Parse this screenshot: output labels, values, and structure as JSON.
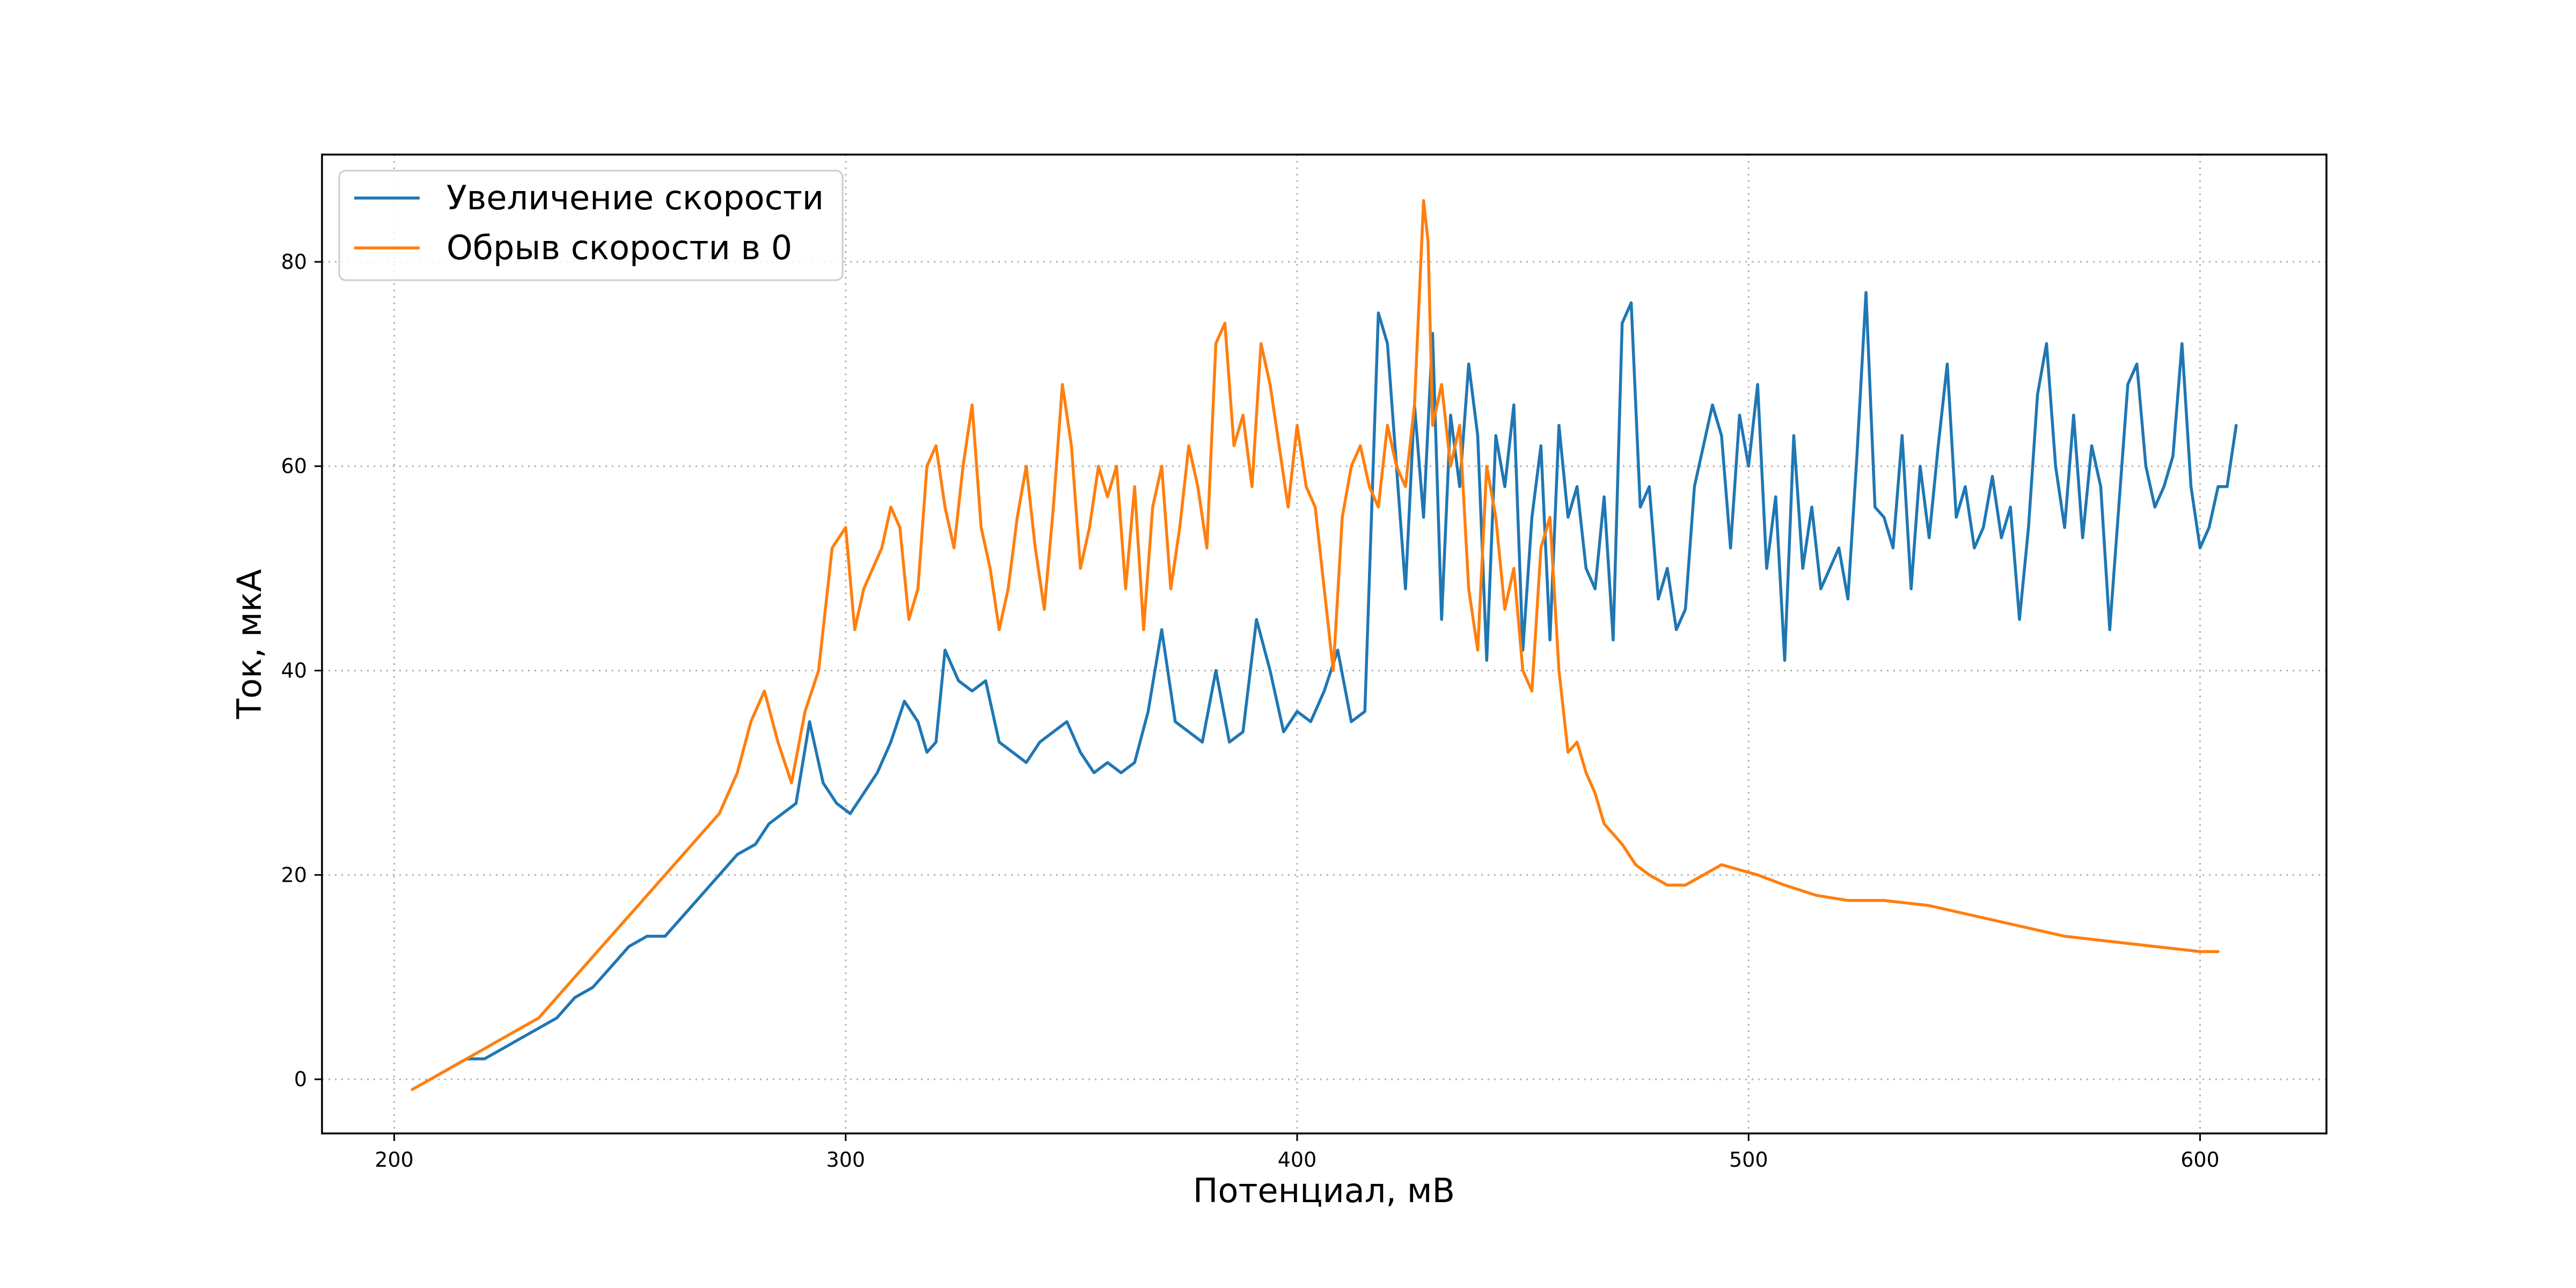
{
  "chart_data": {
    "type": "line",
    "title": "",
    "xlabel": "Потенциал, мВ",
    "ylabel": "Ток, мкА",
    "xlim": [
      184,
      628
    ],
    "ylim": [
      -5.3,
      90.5
    ],
    "xticks": [
      200,
      300,
      400,
      500,
      600
    ],
    "yticks": [
      0,
      20,
      40,
      60,
      80
    ],
    "grid": true,
    "legend_position": "top-left",
    "series": [
      {
        "name": "Увеличение скорости",
        "color": "#1f77b4",
        "x": [
          208,
          212,
          216,
          220,
          224,
          228,
          232,
          236,
          240,
          244,
          248,
          252,
          256,
          260,
          264,
          268,
          272,
          276,
          280,
          283,
          286,
          289,
          292,
          295,
          298,
          301,
          304,
          307,
          310,
          313,
          316,
          318,
          320,
          322,
          325,
          328,
          331,
          334,
          337,
          340,
          343,
          346,
          349,
          352,
          355,
          358,
          361,
          364,
          367,
          370,
          373,
          376,
          379,
          382,
          385,
          388,
          391,
          394,
          397,
          400,
          403,
          406,
          409,
          412,
          415,
          418,
          420,
          422,
          424,
          426,
          428,
          430,
          432,
          434,
          436,
          438,
          440,
          442,
          444,
          446,
          448,
          450,
          452,
          454,
          456,
          458,
          460,
          462,
          464,
          466,
          468,
          470,
          472,
          474,
          476,
          478,
          480,
          482,
          484,
          486,
          488,
          490,
          492,
          494,
          496,
          498,
          500,
          502,
          504,
          506,
          508,
          510,
          512,
          514,
          516,
          518,
          520,
          522,
          524,
          526,
          528,
          530,
          532,
          534,
          536,
          538,
          540,
          542,
          544,
          546,
          548,
          550,
          552,
          554,
          556,
          558,
          560,
          562,
          564,
          566,
          568,
          570,
          572,
          574,
          576,
          578,
          580,
          582,
          584,
          586,
          588,
          590,
          592,
          594,
          596,
          598,
          600,
          602,
          604,
          606,
          608
        ],
        "y": [
          0,
          1,
          2,
          2,
          3,
          4,
          5,
          6,
          8,
          9,
          11,
          13,
          14,
          14,
          16,
          18,
          20,
          22,
          23,
          25,
          26,
          27,
          35,
          29,
          27,
          26,
          28,
          30,
          33,
          37,
          35,
          32,
          33,
          42,
          39,
          38,
          39,
          33,
          32,
          31,
          33,
          34,
          35,
          32,
          30,
          31,
          30,
          31,
          36,
          44,
          35,
          34,
          33,
          40,
          33,
          34,
          45,
          40,
          34,
          36,
          35,
          38,
          42,
          35,
          36,
          75,
          72,
          60,
          48,
          66,
          55,
          73,
          45,
          65,
          58,
          70,
          63,
          41,
          63,
          58,
          66,
          42,
          55,
          62,
          43,
          64,
          55,
          58,
          50,
          48,
          57,
          43,
          74,
          76,
          56,
          58,
          47,
          50,
          44,
          46,
          58,
          62,
          66,
          63,
          52,
          65,
          60,
          68,
          50,
          57,
          41,
          63,
          50,
          56,
          48,
          50,
          52,
          47,
          61,
          77,
          56,
          55,
          52,
          63,
          48,
          60,
          53,
          62,
          70,
          55,
          58,
          52,
          54,
          59,
          53,
          56,
          45,
          54,
          67,
          72,
          60,
          54,
          65,
          53,
          62,
          58,
          44,
          56,
          68,
          70,
          60,
          56,
          58,
          61,
          72,
          58,
          52,
          54,
          58,
          58,
          64
        ]
      },
      {
        "name": "Обрыв скорости в 0",
        "color": "#ff7f0e",
        "x": [
          204,
          208,
          212,
          216,
          220,
          224,
          228,
          232,
          236,
          240,
          244,
          248,
          252,
          256,
          260,
          264,
          268,
          272,
          276,
          279,
          282,
          285,
          288,
          291,
          294,
          297,
          300,
          302,
          304,
          306,
          308,
          310,
          312,
          314,
          316,
          318,
          320,
          322,
          324,
          326,
          328,
          330,
          332,
          334,
          336,
          338,
          340,
          342,
          344,
          346,
          348,
          350,
          352,
          354,
          356,
          358,
          360,
          362,
          364,
          366,
          368,
          370,
          372,
          374,
          376,
          378,
          380,
          382,
          384,
          386,
          388,
          390,
          392,
          394,
          396,
          398,
          400,
          402,
          404,
          406,
          408,
          410,
          412,
          414,
          416,
          418,
          420,
          422,
          424,
          426,
          428,
          429,
          430,
          432,
          434,
          436,
          438,
          440,
          442,
          444,
          446,
          448,
          450,
          452,
          454,
          456,
          458,
          460,
          462,
          464,
          466,
          468,
          470,
          472,
          475,
          478,
          482,
          486,
          490,
          494,
          498,
          502,
          508,
          515,
          522,
          530,
          540,
          550,
          560,
          570,
          580,
          590,
          600,
          604
        ],
        "y": [
          -1,
          0,
          1,
          2,
          3,
          4,
          5,
          6,
          8,
          10,
          12,
          14,
          16,
          18,
          20,
          22,
          24,
          26,
          30,
          35,
          38,
          33,
          29,
          36,
          40,
          52,
          54,
          44,
          48,
          50,
          52,
          56,
          54,
          45,
          48,
          60,
          62,
          56,
          52,
          60,
          66,
          54,
          50,
          44,
          48,
          55,
          60,
          52,
          46,
          56,
          68,
          62,
          50,
          54,
          60,
          57,
          60,
          48,
          58,
          44,
          56,
          60,
          48,
          54,
          62,
          58,
          52,
          72,
          74,
          62,
          65,
          58,
          72,
          68,
          62,
          56,
          64,
          58,
          56,
          48,
          40,
          55,
          60,
          62,
          58,
          56,
          64,
          60,
          58,
          66,
          86,
          82,
          64,
          68,
          60,
          64,
          48,
          42,
          60,
          55,
          46,
          50,
          40,
          38,
          52,
          55,
          40,
          32,
          33,
          30,
          28,
          25,
          24,
          23,
          21,
          20,
          19,
          19,
          20,
          21,
          20.5,
          20,
          19,
          18,
          17.5,
          17.5,
          17,
          16,
          15,
          14,
          13.5,
          13,
          12.5,
          12.5
        ]
      }
    ]
  }
}
